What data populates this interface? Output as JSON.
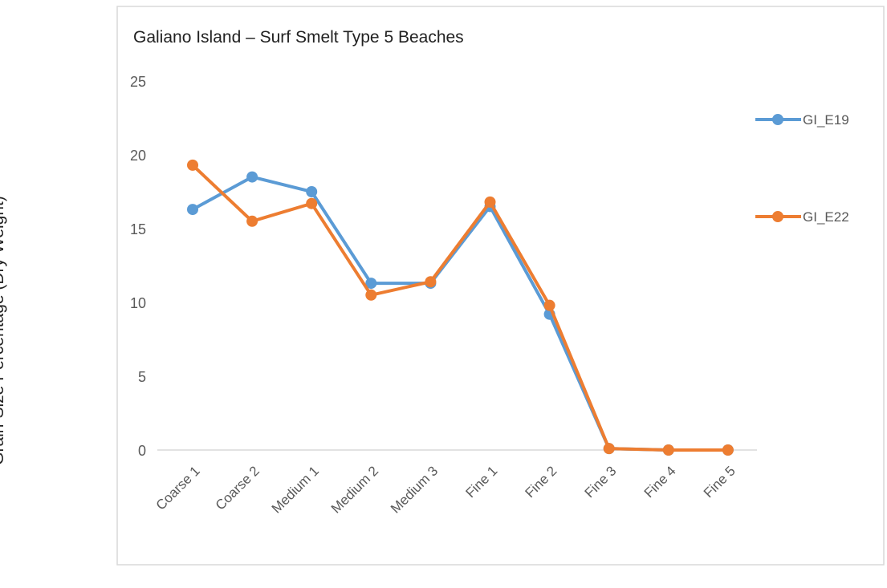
{
  "chart_data": {
    "type": "line",
    "title": "Galiano  Island – Surf Smelt Type 5 Beaches",
    "ylabel": "Grain-Size Percentage (Dry Weight)",
    "xlabel": "",
    "categories": [
      "Coarse 1",
      "Coarse 2",
      "Medium 1",
      "Medium 2",
      "Medium 3",
      "Fine 1",
      "Fine 2",
      "Fine 3",
      "Fine 4",
      "Fine 5"
    ],
    "ylim": [
      0,
      25
    ],
    "yticks": [
      0,
      5,
      10,
      15,
      20,
      25
    ],
    "grid": false,
    "legend": "right",
    "series": [
      {
        "name": "GI_E19",
        "color": "#5b9bd5",
        "values": [
          16.3,
          18.5,
          17.5,
          11.3,
          11.3,
          16.5,
          9.2,
          0.1,
          0,
          0
        ]
      },
      {
        "name": "GI_E22",
        "color": "#ed7d31",
        "values": [
          19.3,
          15.5,
          16.7,
          10.5,
          11.4,
          16.8,
          9.8,
          0.1,
          0,
          0
        ]
      }
    ]
  }
}
